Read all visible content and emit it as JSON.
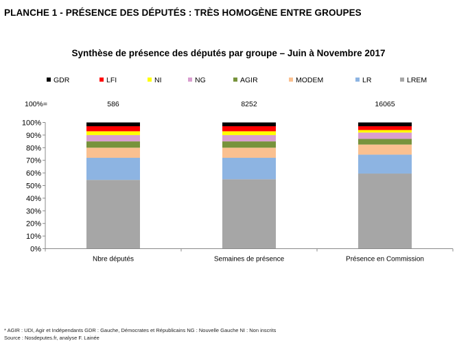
{
  "page": {
    "heading": "PLANCHE 1 - PRÉSENCE DES DÉPUTÉS : TRÈS HOMOGÈNE ENTRE GROUPES",
    "footnote_line1": "* AGIR : UDI, Agir et  Indépendants  GDR : Gauche, Démocrates et Républicains  NG : Nouvelle Gauche  NI : Non inscrits",
    "footnote_line2": "Source : Nosdeputes.fr, analyse F. Lainée"
  },
  "chart_data": {
    "type": "bar",
    "stacked": true,
    "normalized": true,
    "title": "Synthèse de présence des députés par groupe – Juin à Novembre 2017",
    "total_label_prefix": "100%=",
    "categories": [
      "Nbre députés",
      "Semaines de présence",
      "Présence en Commission"
    ],
    "totals": [
      "586",
      "8252",
      "16065"
    ],
    "ylim": [
      0,
      100
    ],
    "yticks": [
      "0%",
      "10%",
      "20%",
      "30%",
      "40%",
      "50%",
      "60%",
      "70%",
      "80%",
      "90%",
      "100%"
    ],
    "grid": false,
    "legend_position": "top",
    "series": [
      {
        "name": "LREM",
        "color": "#a6a6a6",
        "values": [
          54.5,
          55.0,
          59.5
        ]
      },
      {
        "name": "LR",
        "color": "#8db4e2",
        "values": [
          17.5,
          17.0,
          15.0
        ]
      },
      {
        "name": "MODEM",
        "color": "#fac090",
        "values": [
          8.0,
          8.0,
          8.0
        ]
      },
      {
        "name": "AGIR",
        "color": "#77933c",
        "values": [
          5.0,
          5.0,
          4.5
        ]
      },
      {
        "name": "NG",
        "color": "#d99ecf",
        "values": [
          5.0,
          5.0,
          5.0
        ]
      },
      {
        "name": "NI",
        "color": "#ffff00",
        "values": [
          3.0,
          3.0,
          2.0
        ]
      },
      {
        "name": "LFI",
        "color": "#ff0000",
        "values": [
          4.0,
          4.0,
          3.0
        ]
      },
      {
        "name": "GDR",
        "color": "#000000",
        "values": [
          3.0,
          3.0,
          3.0
        ]
      }
    ],
    "legend_order": [
      "GDR",
      "LFI",
      "NI",
      "NG",
      "AGIR",
      "MODEM",
      "LR",
      "LREM"
    ]
  }
}
